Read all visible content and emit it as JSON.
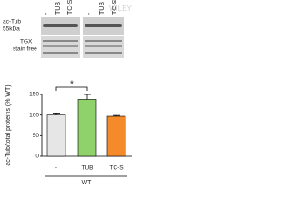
{
  "blot": {
    "row_labels": [
      "ac-Tub",
      "55kDa",
      "TGX",
      "stain free"
    ],
    "lane_labels": [
      "-",
      "TUB",
      "TC-S",
      "-",
      "TUB",
      "TC-S"
    ],
    "watermark": "WILEY"
  },
  "chart_data": {
    "type": "bar",
    "ylabel": "ac-Tub/total proteins (% WT)",
    "categories": [
      "-",
      "TUB",
      "TC-S"
    ],
    "values": [
      100,
      138,
      97
    ],
    "errors": [
      5,
      12,
      2
    ],
    "colors": [
      "#e6e6e6",
      "#8fd16a",
      "#f58a2a"
    ],
    "group_label": "WT",
    "annotation": "*",
    "ylim": [
      0,
      150
    ],
    "yticks": [
      0,
      50,
      100,
      150
    ]
  }
}
